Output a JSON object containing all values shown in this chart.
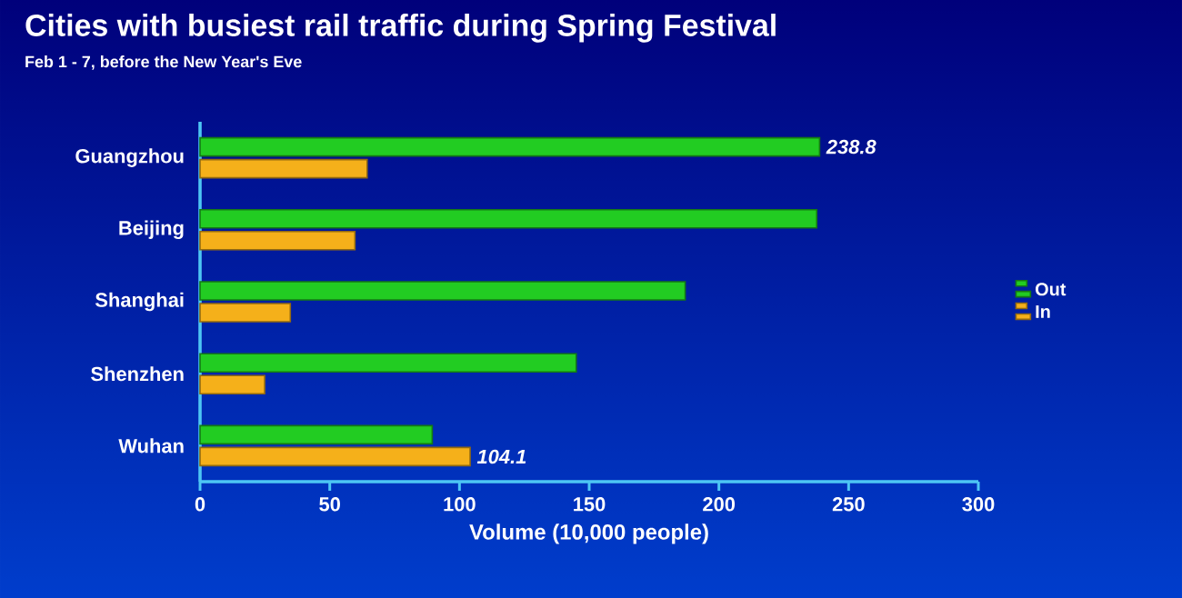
{
  "chart_data": {
    "type": "bar",
    "orientation": "horizontal",
    "title": "Cities with busiest rail traffic during Spring Festival",
    "subtitle": "Feb 1 - 7, before the New Year's Eve",
    "xlabel": "Volume (10,000 people)",
    "categories": [
      "Guangzhou",
      "Beijing",
      "Shanghai",
      "Shenzhen",
      "Wuhan"
    ],
    "series": [
      {
        "name": "Out",
        "color": "#22cc22",
        "values": [
          238.8,
          237.7,
          187,
          145,
          89.5
        ],
        "value_labels": [
          "238.8",
          null,
          null,
          null,
          null
        ]
      },
      {
        "name": "In",
        "color": "#f5b01a",
        "values": [
          64.4,
          59.7,
          34.8,
          24.9,
          104.1
        ],
        "value_labels": [
          null,
          null,
          null,
          null,
          "104.1"
        ]
      }
    ],
    "xlim": [
      0,
      300
    ],
    "xticks": [
      0,
      50,
      100,
      150,
      200,
      250,
      300
    ],
    "grid": false,
    "legend": "right"
  }
}
